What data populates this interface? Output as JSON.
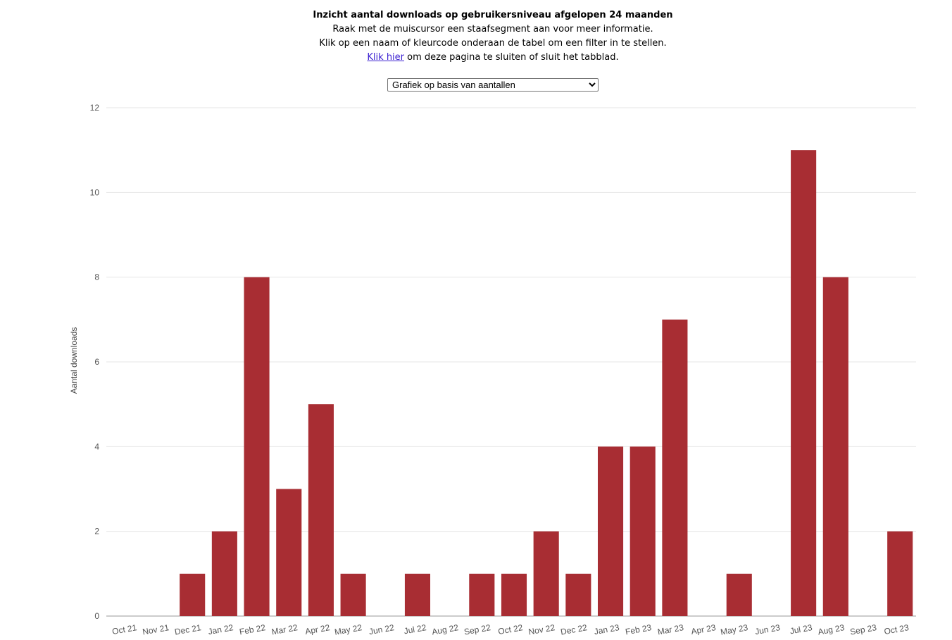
{
  "header": {
    "title": "Inzicht aantal downloads op gebruikersniveau afgelopen 24 maanden",
    "line1": "Raak met de muiscursor een staafsegment aan voor meer informatie.",
    "line2": "Klik op een naam of kleurcode onderaan de tabel om een filter in te stellen.",
    "link_text": "Klik hier",
    "line3_rest": " om deze pagina te sluiten of sluit het tabblad."
  },
  "view_select": {
    "selected": "Grafiek op basis van aantallen"
  },
  "chart_data": {
    "type": "bar",
    "ylabel": "Aantal downloads",
    "ylim": [
      0,
      12
    ],
    "yticks": [
      0,
      2,
      4,
      6,
      8,
      10,
      12
    ],
    "bar_color": "#a82d33",
    "categories": [
      "Oct 21",
      "Nov 21",
      "Dec 21",
      "Jan 22",
      "Feb 22",
      "Mar 22",
      "Apr 22",
      "May 22",
      "Jun 22",
      "Jul 22",
      "Aug 22",
      "Sep 22",
      "Oct 22",
      "Nov 22",
      "Dec 22",
      "Jan 23",
      "Feb 23",
      "Mar 23",
      "Apr 23",
      "May 23",
      "Jun 23",
      "Jul 23",
      "Aug 23",
      "Sep 23",
      "Oct 23"
    ],
    "values": [
      0,
      0,
      1,
      2,
      8,
      3,
      5,
      1,
      0,
      1,
      0,
      1,
      1,
      2,
      1,
      4,
      4,
      7,
      0,
      1,
      0,
      11,
      8,
      0,
      2
    ],
    "grid": true
  }
}
